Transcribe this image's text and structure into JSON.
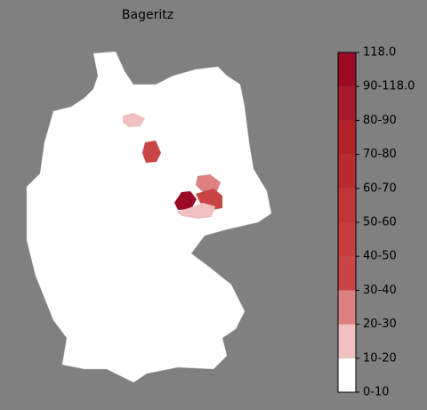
{
  "title": "Bageritz",
  "legend": {
    "labels": [
      "0-10",
      "10-20",
      "20-30",
      "30-40",
      "40-50",
      "50-60",
      "60-70",
      "70-80",
      "80-90",
      "90-118.0",
      "118.0"
    ],
    "colors": [
      "#ffffff",
      "#f0c0c0",
      "#dc8080",
      "#c94545",
      "#c53d3d",
      "#c03636",
      "#b82c30",
      "#b02228",
      "#a51a26",
      "#9a0a22"
    ]
  }
}
